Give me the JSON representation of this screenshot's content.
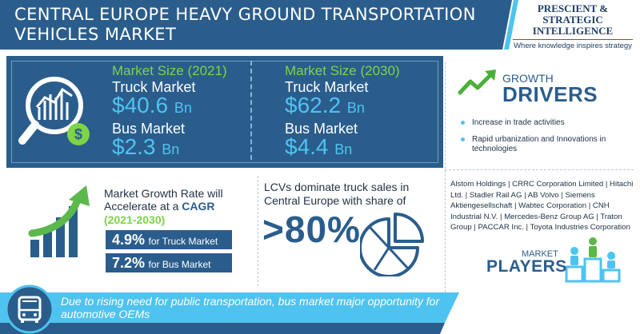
{
  "header": {
    "title": "CENTRAL EUROPE HEAVY GROUND TRANSPORTATION VEHICLES MARKET"
  },
  "logo": {
    "line1": "PRESCIENT & STRATEGIC",
    "line2": "INTELLIGENCE",
    "tagline": "Where knowledge inspires strategy"
  },
  "market_size": {
    "y2021": {
      "label": "Market Size (2021)",
      "truck_label": "Truck Market",
      "truck_value": "$40.6",
      "truck_unit": "Bn",
      "bus_label": "Bus Market",
      "bus_value": "$2.3",
      "bus_unit": "Bn"
    },
    "y2030": {
      "label": "Market Size (2030)",
      "truck_label": "Truck Market",
      "truck_value": "$62.2",
      "truck_unit": "Bn",
      "bus_label": "Bus Market",
      "bus_value": "$4.4",
      "bus_unit": "Bn"
    }
  },
  "growth_drivers": {
    "title_top": "GROWTH",
    "title_bottom": "DRIVERS",
    "items": [
      "Increase in trade activities",
      "Rapid urbanization and Innovations in technologies"
    ]
  },
  "cagr": {
    "text_start": "Market Growth Rate will Accelerate at a",
    "highlight": "CAGR",
    "period": "(2021-2030)",
    "truck_pct": "4.9%",
    "truck_label": "for Truck Market",
    "bus_pct": "7.2%",
    "bus_label": "for Bus Market"
  },
  "lcv": {
    "text": "LCVs dominate truck sales in Central Europe with share of",
    "share": ">80%"
  },
  "players": {
    "text": "Alstom Holdings | CRRC Corporation Limited | Hitachi Ltd. | Stadler Rail AG | AB Volvo | Siemens Aktiengesellschaft | Wabtec Corporation | CNH Industrial N.V. | Mercedes-Benz Group AG | Traton Group | PACCAR Inc. | Toyota Industries Corporation",
    "title_top": "MARKET",
    "title_bottom": "PLAYERS"
  },
  "banner": {
    "text": "Due to rising need for public transportation, bus market major opportunity for automotive OEMs"
  },
  "colors": {
    "primary": "#2a5d8c",
    "accent_green": "#7ed348",
    "accent_cyan": "#4fc3f0",
    "logo_red": "#d6262a"
  },
  "icons": {
    "market_size": "magnifier-chart-dollar-icon",
    "growth": "trend-arrow-icon",
    "cagr": "bar-growth-arrow-icon",
    "lcv": "pie-chart-icon",
    "players": "podium-people-icon",
    "banner": "bus-icon"
  }
}
